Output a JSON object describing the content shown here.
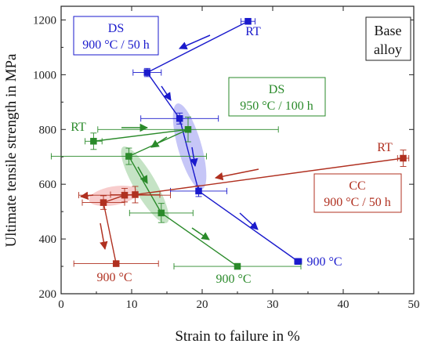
{
  "chart_data": {
    "type": "scatter",
    "xlabel": "Strain to failure in %",
    "ylabel": "Ultimate tensile strength in MPa",
    "xlim": [
      0,
      50
    ],
    "ylim": [
      200,
      1250
    ],
    "xticks": [
      "0",
      "10",
      "20",
      "30",
      "40",
      "50"
    ],
    "yticks": [
      "200",
      "400",
      "600",
      "800",
      "1000",
      "1200"
    ],
    "annotation_base": [
      "Base",
      "alloy"
    ],
    "colors": {
      "ds900": "#1a1acc",
      "ds950": "#2a8a2a",
      "cc900": "#b03020"
    },
    "series": [
      {
        "key": "ds900",
        "box": [
          "DS",
          "900 °C / 50 h"
        ],
        "label_start": "RT",
        "label_end": "900 °C",
        "points": [
          {
            "x": 26.5,
            "y": 1195,
            "xerr": 1.0,
            "yerr": 10
          },
          {
            "x": 12.2,
            "y": 1008,
            "xerr": 2.0,
            "yerr": 15
          },
          {
            "x": 16.8,
            "y": 840,
            "xerr": 5.5,
            "yerr": 20
          },
          {
            "x": 19.5,
            "y": 575,
            "xerr": 4.0,
            "yerr": 20
          },
          {
            "x": 33.6,
            "y": 318,
            "xerr": 0.5,
            "yerr": 8
          }
        ]
      },
      {
        "key": "ds950",
        "box": [
          "DS",
          "950 °C / 100 h"
        ],
        "label_start": "RT",
        "label_end": "900 °C",
        "points": [
          {
            "x": 4.6,
            "y": 757,
            "xerr": 1.2,
            "yerr": 30
          },
          {
            "x": 18.0,
            "y": 800,
            "xerr": 12.8,
            "yerr": 45
          },
          {
            "x": 9.6,
            "y": 702,
            "xerr": 11.0,
            "yerr": 30
          },
          {
            "x": 14.2,
            "y": 495,
            "xerr": 4.5,
            "yerr": 35
          },
          {
            "x": 25.0,
            "y": 300,
            "xerr": 9.0,
            "yerr": 8
          }
        ]
      },
      {
        "key": "cc900",
        "box": [
          "CC",
          "900 °C / 50 h"
        ],
        "label_start": "RT",
        "label_end": "900 °C",
        "points": [
          {
            "x": 48.5,
            "y": 695,
            "xerr": 0.8,
            "yerr": 30
          },
          {
            "x": 10.5,
            "y": 562,
            "xerr": 3.5,
            "yerr": 30
          },
          {
            "x": 9.0,
            "y": 560,
            "xerr": 6.5,
            "yerr": 25
          },
          {
            "x": 6.0,
            "y": 533,
            "xerr": 3.0,
            "yerr": 25
          },
          {
            "x": 7.8,
            "y": 310,
            "xerr": 6.0,
            "yerr": 8
          }
        ]
      }
    ]
  }
}
